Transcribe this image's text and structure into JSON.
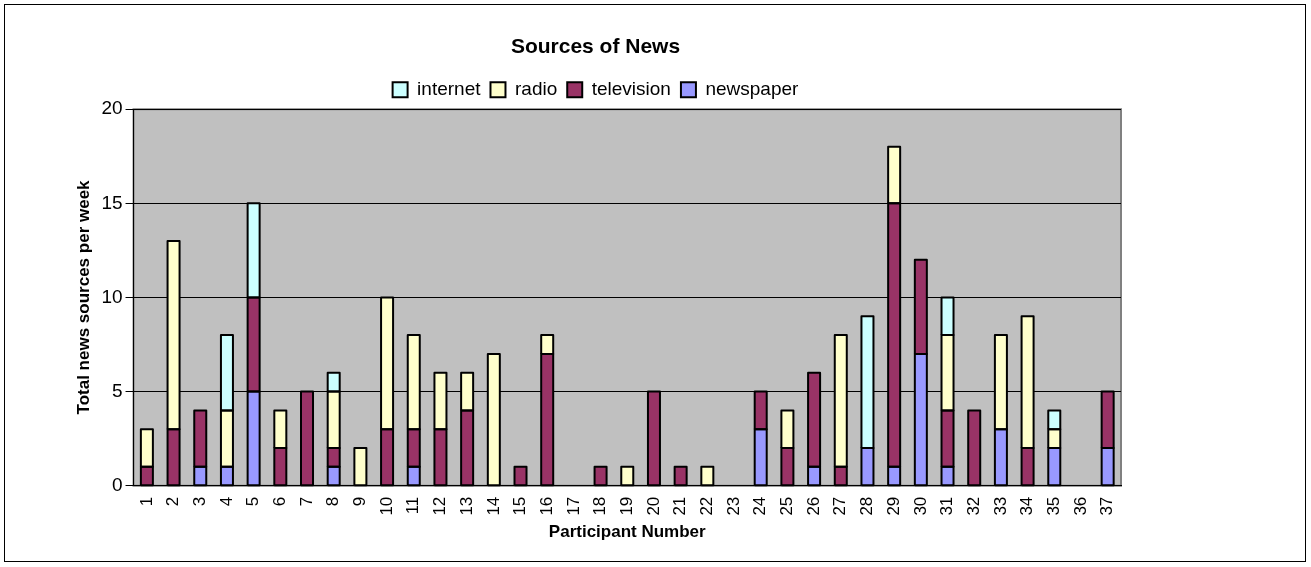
{
  "chart_data": {
    "type": "bar",
    "title": "Sources of News",
    "xlabel": "Participant Number",
    "ylabel": "Total news sources per week",
    "categories": [
      "1",
      "2",
      "3",
      "4",
      "5",
      "6",
      "7",
      "8",
      "9",
      "10",
      "11",
      "12",
      "13",
      "14",
      "15",
      "16",
      "17",
      "18",
      "19",
      "20",
      "21",
      "22",
      "23",
      "24",
      "25",
      "26",
      "27",
      "28",
      "29",
      "30",
      "31",
      "32",
      "33",
      "34",
      "35",
      "36",
      "37"
    ],
    "stacked": true,
    "ylim": [
      0,
      20
    ],
    "yticks": [
      0,
      5,
      10,
      15,
      20
    ],
    "grid": "y",
    "legend": "top",
    "series": [
      {
        "name": "newspaper",
        "color": "#9999ff",
        "values": [
          0,
          0,
          1,
          1,
          5,
          0,
          0,
          1,
          0,
          0,
          1,
          0,
          0,
          0,
          0,
          0,
          0,
          0,
          0,
          0,
          0,
          0,
          0,
          3,
          0,
          1,
          0,
          2,
          1,
          7,
          1,
          0,
          3,
          0,
          2,
          0,
          2
        ]
      },
      {
        "name": "television",
        "color": "#993366",
        "values": [
          1,
          3,
          3,
          0,
          5,
          2,
          5,
          1,
          0,
          3,
          2,
          3,
          4,
          0,
          1,
          7,
          0,
          1,
          0,
          5,
          1,
          0,
          0,
          2,
          2,
          5,
          1,
          0,
          14,
          5,
          3,
          4,
          0,
          2,
          0,
          0,
          3
        ]
      },
      {
        "name": "radio",
        "color": "#ffffcc",
        "values": [
          2,
          10,
          0,
          3,
          0,
          2,
          0,
          3,
          2,
          7,
          5,
          3,
          2,
          7,
          0,
          1,
          0,
          0,
          1,
          0,
          0,
          1,
          0,
          0,
          2,
          0,
          7,
          0,
          3,
          0,
          4,
          0,
          5,
          7,
          1,
          0,
          0
        ]
      },
      {
        "name": "internet",
        "color": "#ccffff",
        "values": [
          0,
          0,
          0,
          4,
          5,
          0,
          0,
          1,
          0,
          0,
          0,
          0,
          0,
          0,
          0,
          0,
          0,
          0,
          0,
          0,
          0,
          0,
          0,
          0,
          0,
          0,
          0,
          7,
          0,
          0,
          2,
          0,
          0,
          0,
          1,
          0,
          0
        ]
      }
    ]
  }
}
